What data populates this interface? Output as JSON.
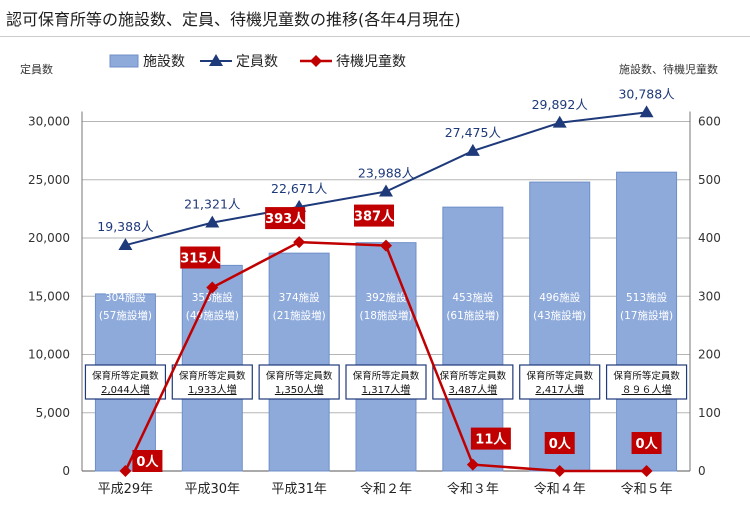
{
  "page": {
    "title": "認可保育所等の施設数、定員、待機児童数の推移(各年4月現在)"
  },
  "chart_data": {
    "type": "bar",
    "title": "認可保育所等の施設数、定員、待機児童数の推移(各年4月現在)",
    "y_left_label": "定員数",
    "y_right_label": "施設数、待機児童数",
    "y_left_ticks": [
      "0",
      "5,000",
      "10,000",
      "15,000",
      "20,000",
      "25,000",
      "30,000"
    ],
    "y_right_ticks": [
      "0",
      "100",
      "200",
      "300",
      "400",
      "500",
      "600"
    ],
    "ylim_left": [
      0,
      32500
    ],
    "ylim_right": [
      0,
      650
    ],
    "grid": true,
    "legend_position": "top",
    "categories": [
      "平成29年",
      "平成30年",
      "平成31年",
      "令和２年",
      "令和３年",
      "令和４年",
      "令和５年"
    ],
    "series": [
      {
        "name": "施設数",
        "type": "bar",
        "axis": "right",
        "color": "#8eaadb",
        "values": [
          304,
          353,
          374,
          392,
          453,
          496,
          513
        ],
        "labels_main": [
          "304施設",
          "353施設",
          "374施設",
          "392施設",
          "453施設",
          "496施設",
          "513施設"
        ],
        "labels_sub": [
          "(57施設増)",
          "(49施設増)",
          "(21施設増)",
          "(18施設増)",
          "(61施設増)",
          "(43施設増)",
          "(17施設増)"
        ]
      },
      {
        "name": "定員数",
        "type": "line",
        "axis": "left",
        "color": "#1f3a7a",
        "values": [
          19388,
          21321,
          22671,
          23988,
          27475,
          29892,
          30788
        ],
        "labels": [
          "19,388人",
          "21,321人",
          "22,671人",
          "23,988人",
          "27,475人",
          "29,892人",
          "30,788人"
        ]
      },
      {
        "name": "待機児童数",
        "type": "line",
        "axis": "right",
        "color": "#c00000",
        "values": [
          0,
          315,
          393,
          387,
          11,
          0,
          0
        ],
        "labels": [
          "0人",
          "315人",
          "393人",
          "387人",
          "11人",
          "0人",
          "0人"
        ]
      }
    ],
    "box_title": "保育所等定員数",
    "box_values": [
      "2,044人増",
      "1,933人増",
      "1,350人増",
      "1,317人増",
      "3,487人増",
      "2,417人増",
      "８９６人増"
    ]
  }
}
